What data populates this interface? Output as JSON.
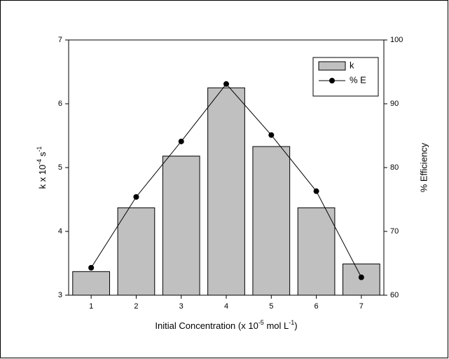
{
  "chart_data": {
    "type": "bar",
    "categories": [
      "1",
      "2",
      "3",
      "4",
      "5",
      "6",
      "7"
    ],
    "xlabel_parts": [
      {
        "text": "Initial Concentration (x 10"
      },
      {
        "text": "-5",
        "sup": true
      },
      {
        "text": " mol L"
      },
      {
        "text": "-1",
        "sup": true
      },
      {
        "text": ")"
      }
    ],
    "ylabel_parts": [
      {
        "text": "k x 10"
      },
      {
        "text": "-4",
        "sup": true
      },
      {
        "text": " s"
      },
      {
        "text": "-1",
        "sup": true
      }
    ],
    "y2label": "% Efficiency",
    "ylim": [
      3,
      7
    ],
    "yticks": [
      3,
      4,
      5,
      6,
      7
    ],
    "y2lim": [
      60,
      100
    ],
    "y2ticks": [
      60,
      70,
      80,
      90,
      100
    ],
    "legend": "top-right",
    "series": [
      {
        "name": "k",
        "type": "bar",
        "color": "#c0c0c0",
        "values": [
          3.37,
          4.37,
          5.18,
          6.25,
          5.33,
          4.37,
          3.49
        ]
      },
      {
        "name": "% E",
        "type": "line",
        "axis": "y2",
        "color": "#000000",
        "values": [
          64.3,
          75.4,
          84.1,
          93.1,
          85.1,
          76.3,
          62.8
        ]
      }
    ]
  }
}
